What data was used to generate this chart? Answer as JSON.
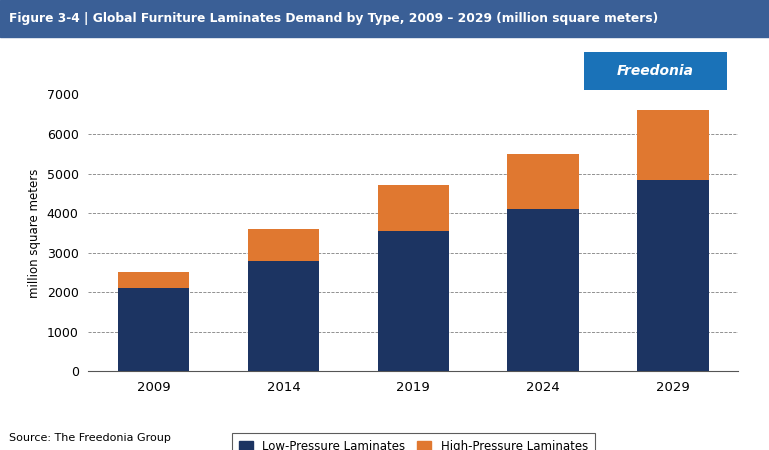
{
  "title": "Figure 3-4 | Global Furniture Laminates Demand by Type, 2009 – 2029 (million square meters)",
  "years": [
    "2009",
    "2014",
    "2019",
    "2024",
    "2029"
  ],
  "low_pressure": [
    2100,
    2800,
    3550,
    4100,
    4850
  ],
  "high_pressure": [
    400,
    800,
    1150,
    1400,
    1750
  ],
  "ylabel": "million square meters",
  "ylim": [
    0,
    7000
  ],
  "yticks": [
    0,
    1000,
    2000,
    3000,
    4000,
    5000,
    6000,
    7000
  ],
  "color_low": "#1c3462",
  "color_high": "#e07830",
  "title_bg_color": "#3a5f96",
  "title_text_color": "#ffffff",
  "legend_label_low": "Low-Pressure Laminates",
  "legend_label_high": "High-Pressure Laminates",
  "source_text": "Source: The Freedonia Group",
  "freedonia_box_color": "#1a72b8",
  "freedonia_text": "Freedonia",
  "bar_width": 0.55,
  "bg_color": "#ffffff"
}
